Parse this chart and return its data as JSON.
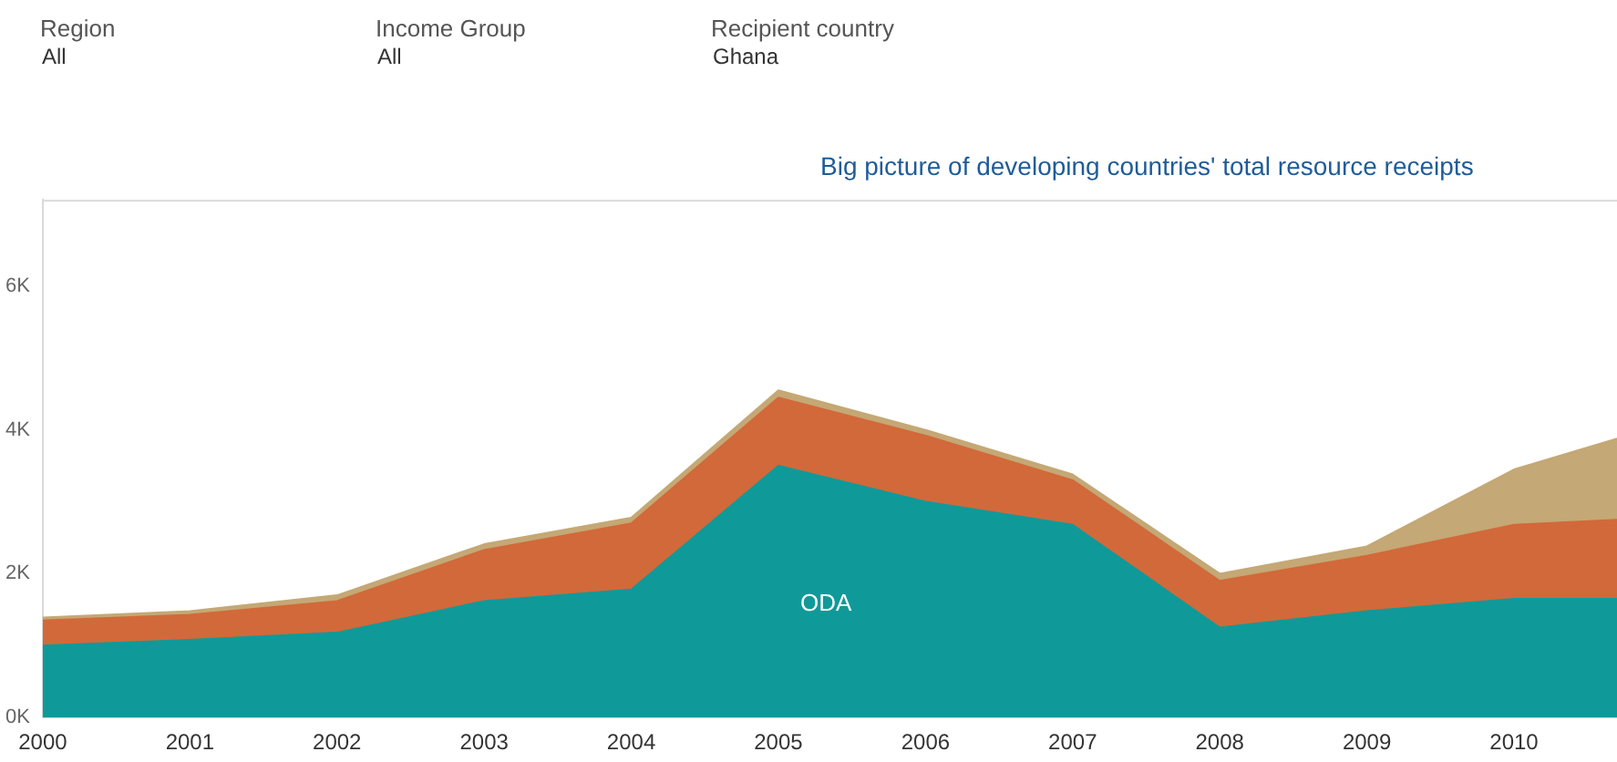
{
  "chart_data": {
    "type": "area",
    "title": "Big picture of developing countries' total resource receipts",
    "annotations": [
      "Region",
      "All",
      "Income Group",
      "All",
      "Recipient country",
      "Ghana"
    ],
    "x": [
      2000,
      2001,
      2002,
      2003,
      2004,
      2005,
      2006,
      2007,
      2008,
      2009,
      2010,
      2010.7
    ],
    "stacked": true,
    "series": [
      {
        "name": "ODA",
        "color": "#0f9a99",
        "values": [
          1000,
          1080,
          1180,
          1620,
          1780,
          3500,
          3000,
          2680,
          1250,
          1480,
          1650,
          1650
        ]
      },
      {
        "color": "#d2693a",
        "values": [
          350,
          350,
          440,
          710,
          920,
          950,
          920,
          620,
          650,
          770,
          1030,
          1100
        ]
      },
      {
        "color": "#c4a875",
        "values": [
          40,
          50,
          80,
          80,
          80,
          100,
          80,
          80,
          100,
          130,
          770,
          1130
        ]
      }
    ],
    "xlim": [
      2000,
      2010.7
    ],
    "xticks": [
      2000,
      2001,
      2002,
      2003,
      2004,
      2005,
      2006,
      2007,
      2008,
      2009,
      2010
    ],
    "ylim": [
      0,
      7200
    ],
    "yticks": [
      {
        "value": 0,
        "label": "0K"
      },
      {
        "value": 2000,
        "label": "2K"
      },
      {
        "value": 4000,
        "label": "4K"
      },
      {
        "value": 6000,
        "label": "6K"
      }
    ],
    "grid": false,
    "legend": false
  }
}
